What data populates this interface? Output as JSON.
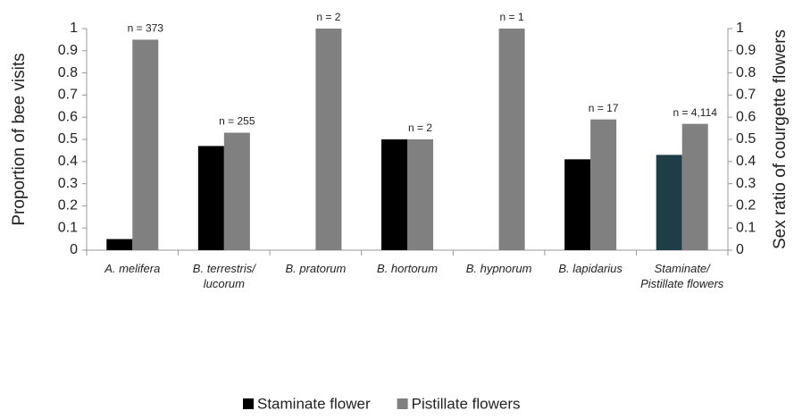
{
  "chart_data": {
    "type": "bar",
    "categories": [
      "A. melifera",
      "B. terrestris/ lucorum",
      "B. pratorum",
      "B. hortorum",
      "B. hypnorum",
      "B. lapidarius",
      "Staminate/ Pistillate flowers"
    ],
    "series": [
      {
        "name": "Staminate flower",
        "color": "#000000",
        "colors": [
          "#000000",
          "#000000",
          "#000000",
          "#000000",
          "#000000",
          "#000000",
          "#1e3d47"
        ],
        "values": [
          0.05,
          0.47,
          0,
          0.5,
          0,
          0.41,
          0.43
        ]
      },
      {
        "name": "Pistillate flowers",
        "color": "#808080",
        "values": [
          0.95,
          0.53,
          1,
          0.5,
          1,
          0.59,
          0.57
        ]
      }
    ],
    "annotations": [
      "n = 373",
      "n = 255",
      "n = 2",
      "n = 2",
      "n = 1",
      "n = 17",
      "n = 4,114"
    ],
    "y_label": "Proportion of bee visits",
    "y2_label": "Sex ratio of courgette flowers",
    "ylim": [
      0,
      1
    ],
    "yticks": [
      0,
      0.1,
      0.2,
      0.3,
      0.4,
      0.5,
      0.6,
      0.7,
      0.8,
      0.9,
      1
    ],
    "y2lim": [
      0,
      1
    ],
    "y2ticks": [
      0,
      0.1,
      0.2,
      0.3,
      0.4,
      0.5,
      0.6,
      0.7,
      0.8,
      0.9,
      1
    ],
    "grid": false,
    "legend": "bottom"
  }
}
